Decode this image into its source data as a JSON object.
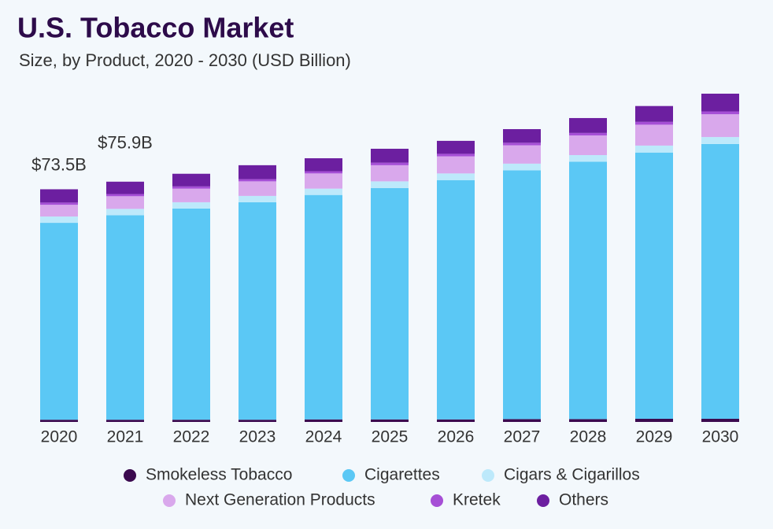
{
  "chart_data": {
    "type": "stacked_bar",
    "title": "U.S. Tobacco Market",
    "subtitle": "Size, by Product, 2020 - 2030 (USD Billion)",
    "categories": [
      "2020",
      "2021",
      "2022",
      "2023",
      "2024",
      "2025",
      "2026",
      "2027",
      "2028",
      "2029",
      "2030"
    ],
    "series": [
      {
        "name": "Smokeless Tobacco",
        "color": "#3b0a4f",
        "values": [
          0.7,
          0.7,
          0.7,
          0.7,
          0.8,
          0.8,
          0.8,
          0.9,
          0.9,
          1.0,
          1.0
        ]
      },
      {
        "name": "Cigarettes",
        "color": "#5bc8f5",
        "values": [
          62.2,
          64.6,
          66.7,
          68.7,
          70.9,
          73.1,
          75.6,
          78.6,
          81.3,
          84.1,
          86.8
        ]
      },
      {
        "name": "Cigars & Cigarillos",
        "color": "#bde9fb",
        "values": [
          2.0,
          2.0,
          2.0,
          2.0,
          2.0,
          2.1,
          2.1,
          2.1,
          2.1,
          2.2,
          2.2
        ]
      },
      {
        "name": "Next Generation Products",
        "color": "#d9a8ec",
        "values": [
          3.7,
          4.0,
          4.3,
          4.6,
          4.8,
          5.1,
          5.4,
          5.8,
          6.2,
          6.6,
          7.2
        ]
      },
      {
        "name": "Kretek",
        "color": "#a64fd6",
        "values": [
          0.7,
          0.7,
          0.7,
          0.7,
          0.7,
          0.8,
          0.8,
          0.8,
          0.8,
          0.9,
          0.9
        ]
      },
      {
        "name": "Others",
        "color": "#6c1fa0",
        "values": [
          4.2,
          3.9,
          4.0,
          4.4,
          4.1,
          4.4,
          4.1,
          4.3,
          4.7,
          5.0,
          5.6
        ]
      }
    ],
    "total_values": [
      73.5,
      75.9
    ],
    "total_labels": [
      "$73.5B",
      "$75.9B"
    ]
  }
}
